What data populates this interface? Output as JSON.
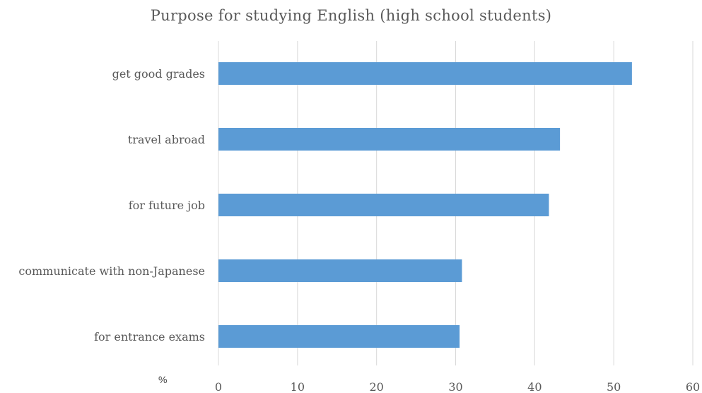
{
  "chart_data": {
    "type": "bar",
    "orientation": "horizontal",
    "title": "Purpose for studying English (high school students)",
    "unit_label": "%",
    "categories": [
      "get good grades",
      "travel abroad",
      "for future job",
      "communicate with non-Japanese",
      "for entrance exams"
    ],
    "values": [
      52.3,
      43.2,
      41.8,
      30.8,
      30.5
    ],
    "xlim": [
      0,
      60
    ],
    "x_ticks": [
      0,
      10,
      20,
      30,
      40,
      50,
      60
    ],
    "grid": "vertical",
    "legend": "none",
    "bar_color": "#5b9bd5",
    "grid_color": "#d9d9d9"
  }
}
